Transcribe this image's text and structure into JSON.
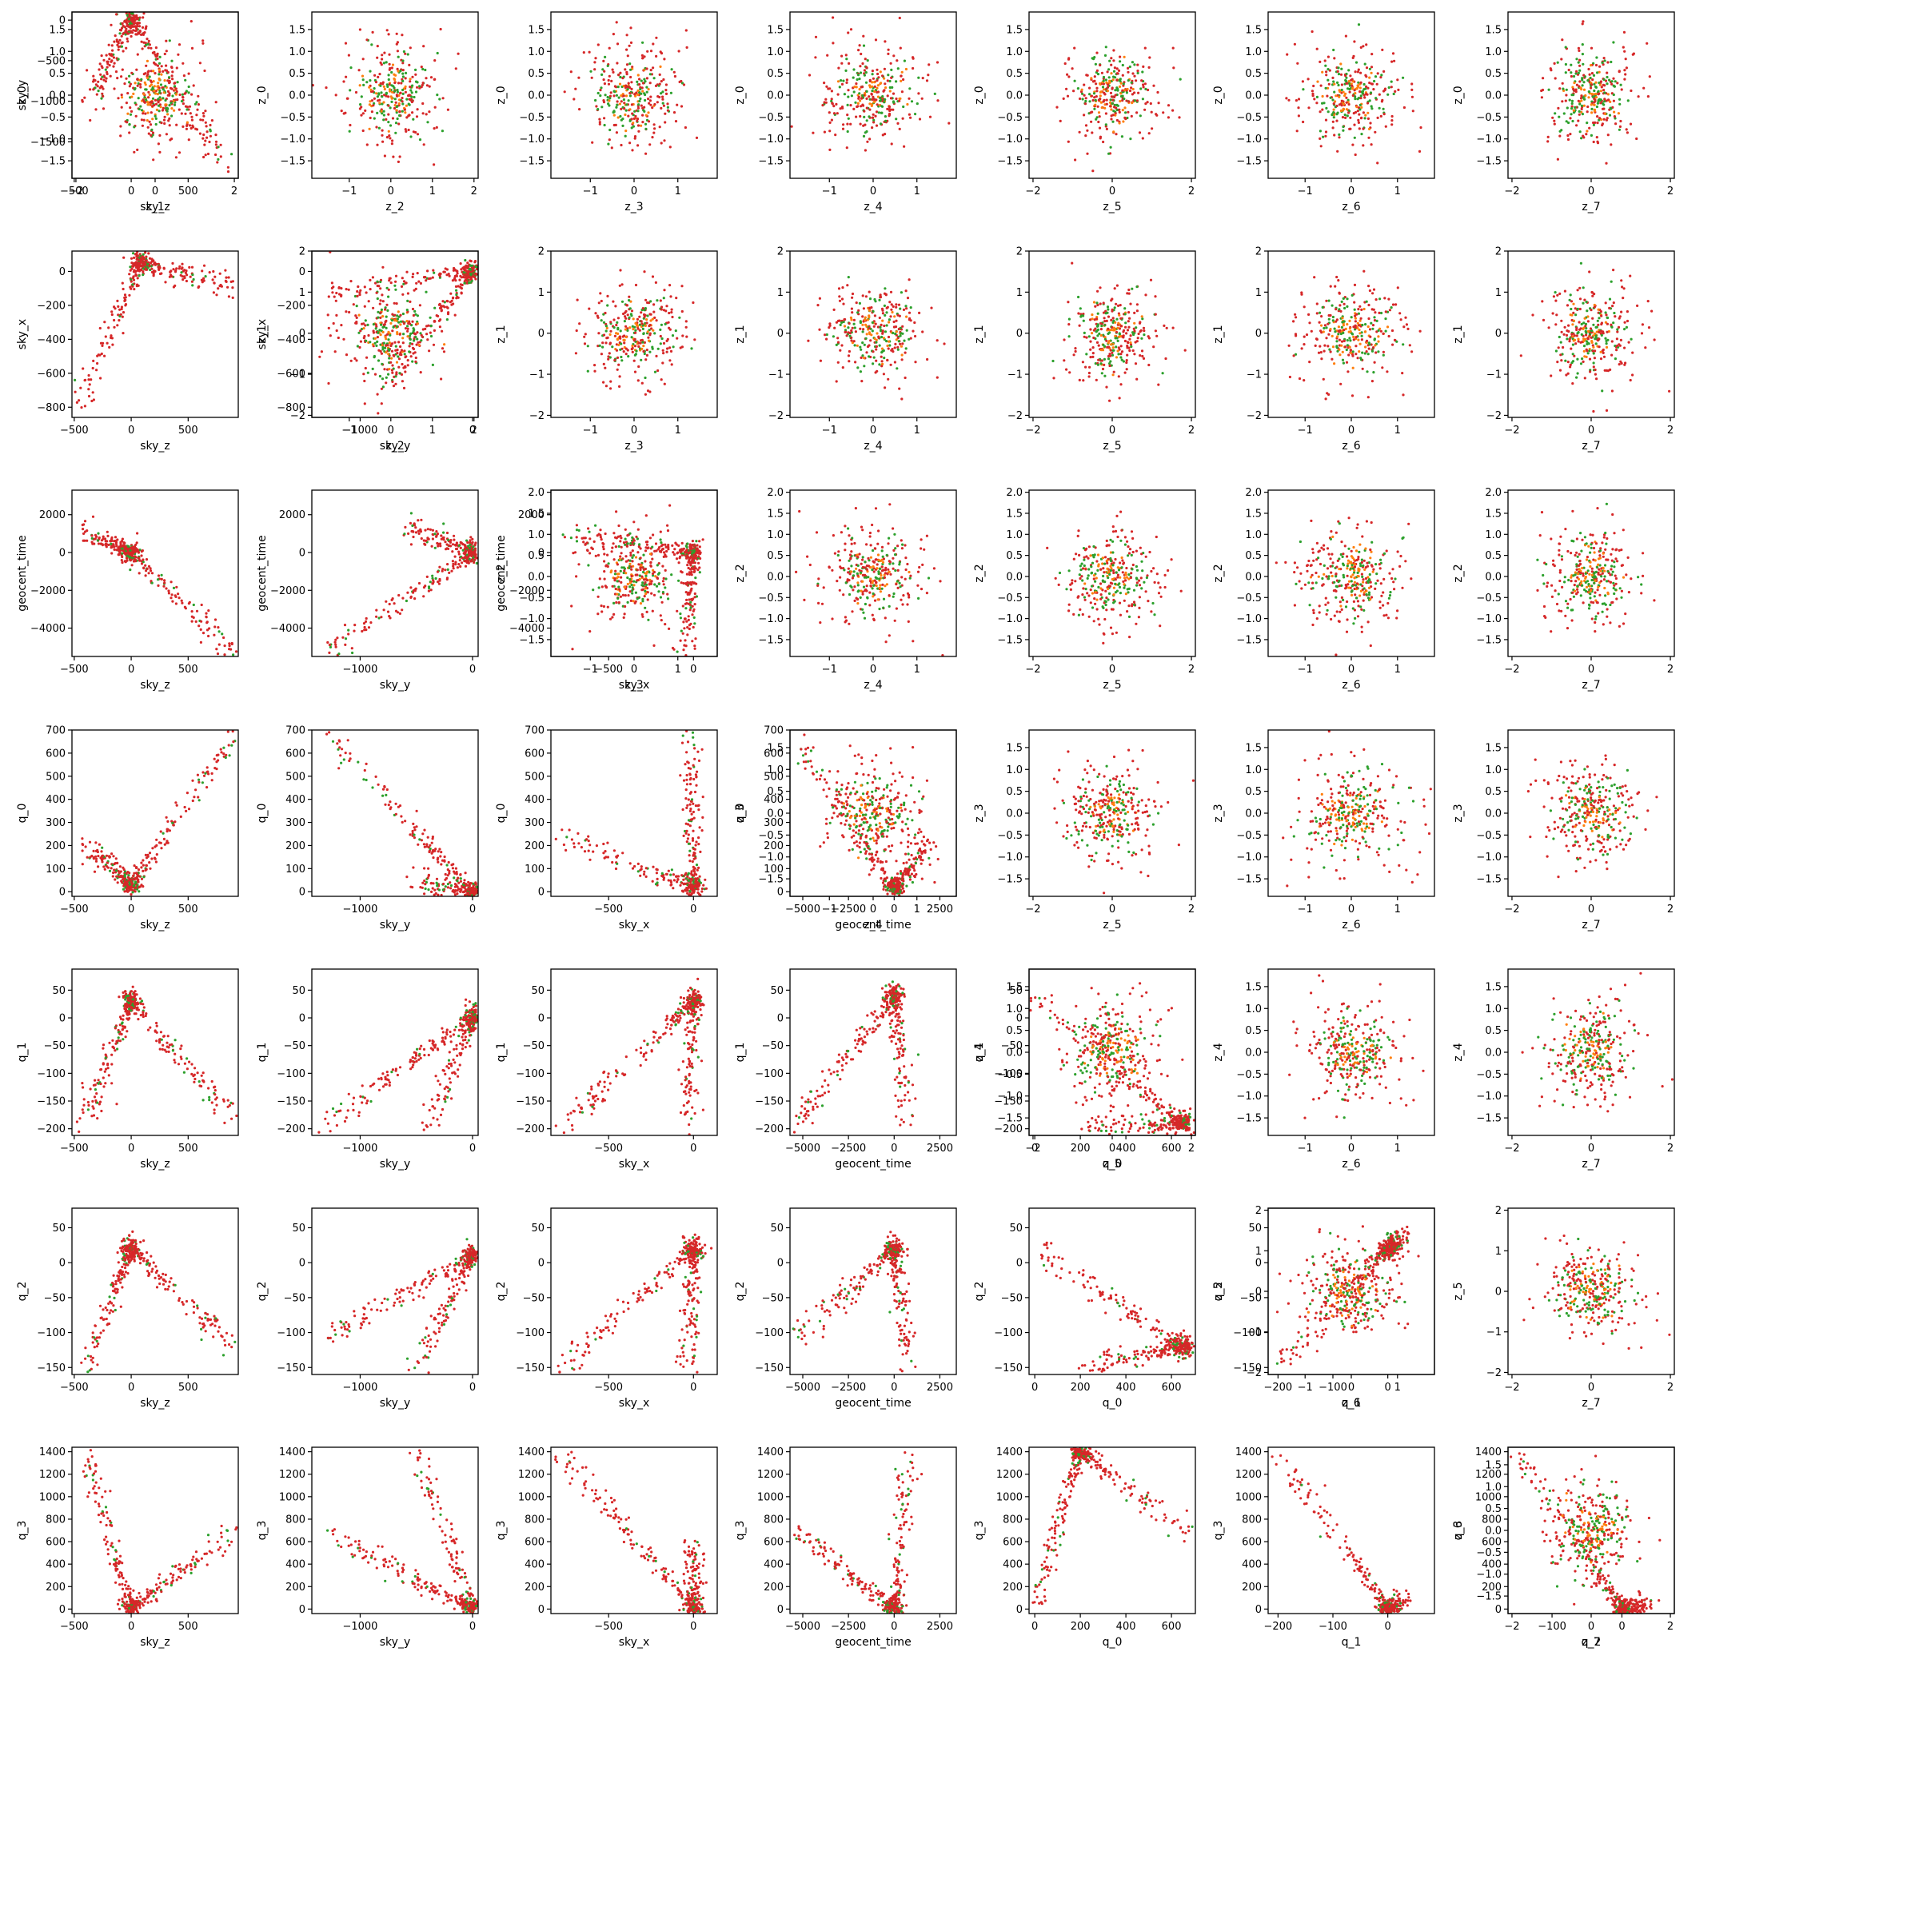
{
  "chart_data": {
    "type": "scatter",
    "layout": "pair-plot",
    "variables": [
      "sky_z",
      "sky_y",
      "sky_x",
      "geocent_time",
      "q_0",
      "q_1",
      "q_2",
      "q_3"
    ],
    "latent_variables": [
      "z_0",
      "z_1",
      "z_2",
      "z_3",
      "z_4",
      "z_5",
      "z_6",
      "z_7"
    ],
    "colors": {
      "primary": "#d62728",
      "secondary": "#2ca02c",
      "tertiary": "#ff7f0e"
    },
    "point_count": 260,
    "lower_triangle": {
      "description_of_shape": "sky/geocent_time/q variables plotted pairwise; strongly correlated V-shaped structures",
      "axes": {
        "sky_z": {
          "lim": [
            -520,
            940
          ],
          "ticks": [
            -500,
            0,
            500
          ],
          "tick_labels": [
            "−500",
            "0",
            "500"
          ]
        },
        "sky_y": {
          "lim": [
            -1430,
            50
          ],
          "ticks": [
            -1000,
            0
          ],
          "tick_labels": [
            "−1000",
            "0"
          ]
        },
        "sky_x": {
          "lim": [
            -840,
            140
          ],
          "ticks": [
            -500,
            0
          ],
          "tick_labels": [
            "−500",
            "0"
          ]
        },
        "geocent_time": {
          "lim": [
            -5700,
            3400
          ],
          "ticks": [
            -5000,
            -2500,
            0,
            2500
          ],
          "tick_labels": [
            "−5000",
            "−2500",
            "0",
            "2500"
          ]
        },
        "q_0": {
          "lim": [
            -25,
            705
          ],
          "ticks": [
            0,
            200,
            400,
            600
          ],
          "tick_labels": [
            "0",
            "200",
            "400",
            "600"
          ]
        },
        "q_1": {
          "lim": [
            -218,
            85
          ],
          "ticks": [
            -200,
            -100,
            0
          ],
          "tick_labels": [
            "−200",
            "−100",
            "0"
          ]
        },
        "q_2": {
          "lim": [
            -163,
            75
          ],
          "ticks": [
            -100,
            0
          ],
          "tick_labels": [
            "−100",
            "0"
          ]
        },
        "q_3": {
          "lim": [
            -40,
            1440
          ],
          "ticks": [
            0,
            200,
            400,
            600,
            800,
            1000,
            1200,
            1400
          ],
          "tick_labels": [
            "0",
            "200",
            "400",
            "600",
            "800",
            "1000",
            "1200",
            "1400"
          ]
        }
      },
      "y_axis_ticks": {
        "sky_y": {
          "ticks": [
            0,
            -500,
            -1000,
            -1500
          ],
          "tick_labels": [
            "0",
            "−500",
            "−1000",
            "−1500"
          ],
          "lim": [
            -1950,
            100
          ]
        },
        "sky_x": {
          "ticks": [
            0,
            -200,
            -400,
            -600,
            -800
          ],
          "tick_labels": [
            "0",
            "−200",
            "−400",
            "−600",
            "−800"
          ],
          "lim": [
            -860,
            120
          ]
        },
        "geocent_time": {
          "ticks": [
            2000,
            0,
            -2000,
            -4000
          ],
          "tick_labels": [
            "2000",
            "0",
            "−2000",
            "−4000"
          ],
          "lim": [
            -5500,
            3300
          ]
        },
        "q_0": {
          "ticks": [
            0,
            100,
            200,
            300,
            400,
            500,
            600,
            700
          ],
          "tick_labels": [
            "0",
            "100",
            "200",
            "300",
            "400",
            "500",
            "600",
            "700"
          ],
          "lim": [
            -20,
            700
          ]
        },
        "q_1": {
          "ticks": [
            50,
            0,
            -50,
            -100,
            -150,
            -200
          ],
          "tick_labels": [
            "50",
            "0",
            "−50",
            "−100",
            "−150",
            "−200"
          ],
          "lim": [
            -212,
            88
          ]
        },
        "q_2": {
          "ticks": [
            50,
            0,
            -50,
            -100,
            -150
          ],
          "tick_labels": [
            "50",
            "0",
            "−50",
            "−100",
            "−150"
          ],
          "lim": [
            -160,
            78
          ]
        },
        "q_3": {
          "ticks": [
            0,
            200,
            400,
            600,
            800,
            1000,
            1200,
            1400
          ],
          "tick_labels": [
            "0",
            "200",
            "400",
            "600",
            "800",
            "1000",
            "1200",
            "1400"
          ],
          "lim": [
            -40,
            1440
          ]
        }
      }
    },
    "upper_triangle": {
      "description_of_shape": "latent z variables plotted pairwise; isotropic Gaussian blobs centered at 0",
      "x_axes": {
        "z_1": {
          "lim": [
            -2.1,
            2.1
          ],
          "ticks": [
            -2,
            0,
            2
          ],
          "tick_labels": [
            "−2",
            "0",
            "2"
          ]
        },
        "z_2": {
          "lim": [
            -1.9,
            2.1
          ],
          "ticks": [
            -1,
            0,
            1,
            2
          ],
          "tick_labels": [
            "−1",
            "0",
            "1",
            "2"
          ]
        },
        "z_3": {
          "lim": [
            -1.9,
            1.9
          ],
          "ticks": [
            -1,
            0,
            1
          ],
          "tick_labels": [
            "−1",
            "0",
            "1"
          ]
        },
        "z_4": {
          "lim": [
            -1.9,
            1.9
          ],
          "ticks": [
            -1,
            0,
            1
          ],
          "tick_labels": [
            "−1",
            "0",
            "1"
          ]
        },
        "z_5": {
          "lim": [
            -2.1,
            2.1
          ],
          "ticks": [
            -2,
            0,
            2
          ],
          "tick_labels": [
            "−2",
            "0",
            "2"
          ]
        },
        "z_6": {
          "lim": [
            -1.8,
            1.8
          ],
          "ticks": [
            -1,
            0,
            1
          ],
          "tick_labels": [
            "−1",
            "0",
            "1"
          ]
        },
        "z_7": {
          "lim": [
            -2.1,
            2.1
          ],
          "ticks": [
            -2,
            0,
            2
          ],
          "tick_labels": [
            "−2",
            "0",
            "2"
          ]
        }
      },
      "y_axes": {
        "z_0": {
          "lim": [
            -1.9,
            1.9
          ],
          "ticks": [
            1.5,
            1.0,
            0.5,
            0.0,
            -0.5,
            -1.0,
            -1.5
          ],
          "tick_labels": [
            "1.5",
            "1.0",
            "0.5",
            "0.0",
            "−0.5",
            "−1.0",
            "−1.5"
          ]
        },
        "z_1": {
          "lim": [
            -2.05,
            2.0
          ],
          "ticks": [
            2,
            1,
            0,
            -1,
            -2
          ],
          "tick_labels": [
            "2",
            "1",
            "0",
            "−1",
            "−2"
          ]
        },
        "z_2": {
          "lim": [
            -1.9,
            2.05
          ],
          "ticks": [
            2.0,
            1.5,
            1.0,
            0.5,
            0.0,
            -0.5,
            -1.0,
            -1.5
          ],
          "tick_labels": [
            "2.0",
            "1.5",
            "1.0",
            "0.5",
            "0.0",
            "−0.5",
            "−1.0",
            "−1.5"
          ]
        },
        "z_3": {
          "lim": [
            -1.9,
            1.9
          ],
          "ticks": [
            1.5,
            1.0,
            0.5,
            0.0,
            -0.5,
            -1.0,
            -1.5
          ],
          "tick_labels": [
            "1.5",
            "1.0",
            "0.5",
            "0.0",
            "−0.5",
            "−1.0",
            "−1.5"
          ]
        },
        "z_4": {
          "lim": [
            -1.9,
            1.9
          ],
          "ticks": [
            1.5,
            1.0,
            0.5,
            0.0,
            -0.5,
            -1.0,
            -1.5
          ],
          "tick_labels": [
            "1.5",
            "1.0",
            "0.5",
            "0.0",
            "−0.5",
            "−1.0",
            "−1.5"
          ]
        },
        "z_5": {
          "lim": [
            -2.05,
            2.05
          ],
          "ticks": [
            2,
            1,
            0,
            -1,
            -2
          ],
          "tick_labels": [
            "2",
            "1",
            "0",
            "−1",
            "−2"
          ]
        },
        "z_6": {
          "lim": [
            -1.9,
            1.9
          ],
          "ticks": [
            1.5,
            1.0,
            0.5,
            0.0,
            -0.5,
            -1.0,
            -1.5
          ],
          "tick_labels": [
            "1.5",
            "1.0",
            "0.5",
            "0.0",
            "−0.5",
            "−1.0",
            "−1.5"
          ]
        }
      }
    },
    "lower_panels": [
      {
        "x": "sky_z",
        "y": "sky_y",
        "pattern": [
          [
            -400,
            -1100
          ],
          [
            0,
            0
          ],
          [
            900,
            -1900
          ]
        ]
      },
      {
        "x": "sky_z",
        "y": "sky_x",
        "pattern": [
          [
            -450,
            -780
          ],
          [
            80,
            50
          ],
          [
            900,
            -100
          ]
        ]
      },
      {
        "x": "sky_y",
        "y": "sky_x",
        "pattern": [
          [
            -1300,
            -120
          ],
          [
            0,
            0
          ],
          [
            -900,
            -780
          ]
        ]
      },
      {
        "x": "sky_z",
        "y": "geocent_time",
        "pattern": [
          [
            -400,
            900
          ],
          [
            0,
            0
          ],
          [
            900,
            -5300
          ]
        ]
      },
      {
        "x": "sky_y",
        "y": "geocent_time",
        "pattern": [
          [
            -1300,
            -5300
          ],
          [
            0,
            0
          ],
          [
            -600,
            1500
          ]
        ]
      },
      {
        "x": "sky_x",
        "y": "geocent_time",
        "pattern": [
          [
            -780,
            900
          ],
          [
            0,
            0
          ],
          [
            -50,
            -5300
          ]
        ]
      },
      {
        "x": "sky_z",
        "y": "q_0",
        "pattern": [
          [
            -400,
            200
          ],
          [
            0,
            30
          ],
          [
            900,
            670
          ]
        ]
      },
      {
        "x": "sky_y",
        "y": "q_0",
        "pattern": [
          [
            -1300,
            670
          ],
          [
            0,
            0
          ],
          [
            -500,
            40
          ]
        ]
      },
      {
        "x": "sky_x",
        "y": "q_0",
        "pattern": [
          [
            -780,
            240
          ],
          [
            0,
            20
          ],
          [
            -20,
            670
          ]
        ]
      },
      {
        "x": "geocent_time",
        "y": "q_0",
        "pattern": [
          [
            -5300,
            670
          ],
          [
            0,
            10
          ],
          [
            2000,
            230
          ]
        ]
      },
      {
        "x": "sky_z",
        "y": "q_1",
        "pattern": [
          [
            -400,
            -180
          ],
          [
            0,
            30
          ],
          [
            900,
            -185
          ]
        ]
      },
      {
        "x": "sky_y",
        "y": "q_1",
        "pattern": [
          [
            -1300,
            -190
          ],
          [
            0,
            0
          ],
          [
            -400,
            -200
          ]
        ]
      },
      {
        "x": "sky_x",
        "y": "q_1",
        "pattern": [
          [
            -780,
            -200
          ],
          [
            0,
            30
          ],
          [
            -30,
            -200
          ]
        ]
      },
      {
        "x": "geocent_time",
        "y": "q_1",
        "pattern": [
          [
            -5300,
            -190
          ],
          [
            0,
            40
          ],
          [
            800,
            -200
          ]
        ]
      },
      {
        "x": "q_0",
        "y": "q_1",
        "pattern": [
          [
            0,
            40
          ],
          [
            650,
            -190
          ],
          [
            200,
            -200
          ]
        ]
      },
      {
        "x": "sky_z",
        "y": "q_2",
        "pattern": [
          [
            -400,
            -150
          ],
          [
            0,
            20
          ],
          [
            900,
            -120
          ]
        ]
      },
      {
        "x": "sky_y",
        "y": "q_2",
        "pattern": [
          [
            -1300,
            -110
          ],
          [
            0,
            10
          ],
          [
            -500,
            -150
          ]
        ]
      },
      {
        "x": "sky_x",
        "y": "q_2",
        "pattern": [
          [
            -780,
            -150
          ],
          [
            0,
            20
          ],
          [
            -30,
            -150
          ]
        ]
      },
      {
        "x": "geocent_time",
        "y": "q_2",
        "pattern": [
          [
            -5300,
            -110
          ],
          [
            0,
            20
          ],
          [
            800,
            -150
          ]
        ]
      },
      {
        "x": "q_0",
        "y": "q_2",
        "pattern": [
          [
            0,
            20
          ],
          [
            650,
            -120
          ],
          [
            200,
            -150
          ]
        ]
      },
      {
        "x": "q_1",
        "y": "q_2",
        "pattern": [
          [
            -200,
            -150
          ],
          [
            0,
            20
          ],
          [
            30,
            40
          ]
        ]
      },
      {
        "x": "sky_z",
        "y": "q_3",
        "pattern": [
          [
            -400,
            1350
          ],
          [
            0,
            0
          ],
          [
            900,
            680
          ]
        ]
      },
      {
        "x": "sky_y",
        "y": "q_3",
        "pattern": [
          [
            -1300,
            680
          ],
          [
            0,
            0
          ],
          [
            -500,
            1400
          ]
        ]
      },
      {
        "x": "sky_x",
        "y": "q_3",
        "pattern": [
          [
            -780,
            1400
          ],
          [
            0,
            0
          ],
          [
            0,
            600
          ]
        ]
      },
      {
        "x": "geocent_time",
        "y": "q_3",
        "pattern": [
          [
            -5300,
            680
          ],
          [
            0,
            0
          ],
          [
            800,
            1400
          ]
        ]
      },
      {
        "x": "q_0",
        "y": "q_3",
        "pattern": [
          [
            0,
            0
          ],
          [
            200,
            1400
          ],
          [
            660,
            680
          ]
        ]
      },
      {
        "x": "q_1",
        "y": "q_3",
        "pattern": [
          [
            -200,
            1400
          ],
          [
            0,
            0
          ],
          [
            30,
            50
          ]
        ]
      },
      {
        "x": "q_2",
        "y": "q_3",
        "pattern": [
          [
            -150,
            1400
          ],
          [
            0,
            0
          ],
          [
            40,
            60
          ]
        ]
      }
    ]
  }
}
